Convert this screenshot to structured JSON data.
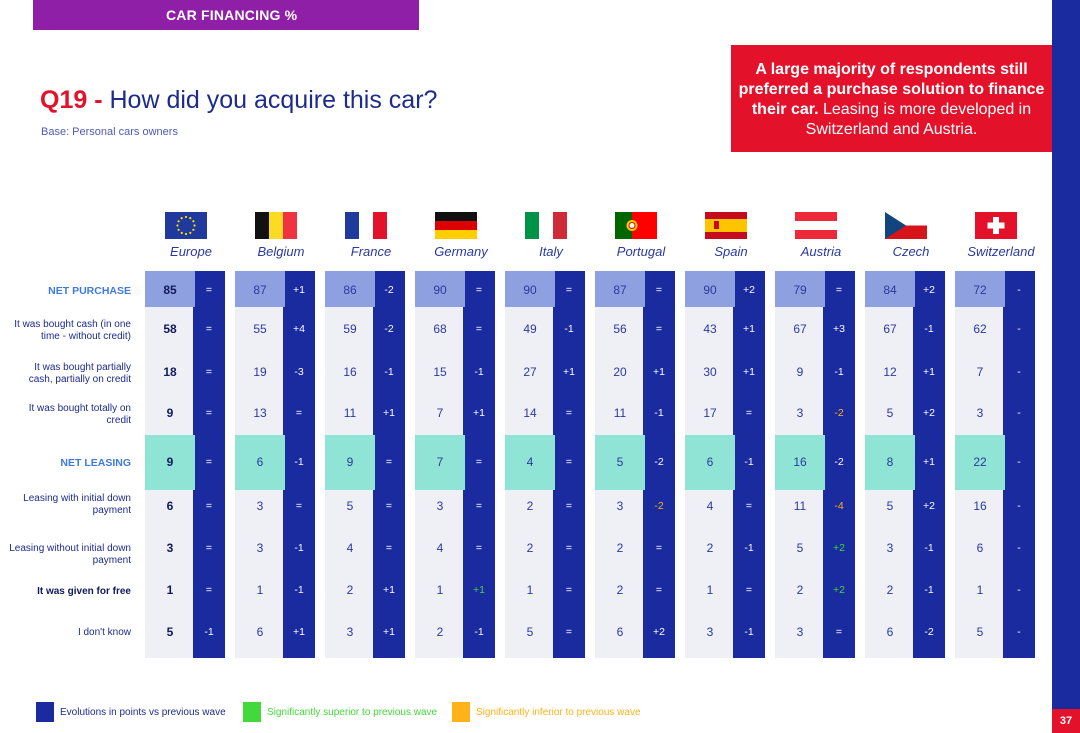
{
  "header": {
    "section": "CAR FINANCING %"
  },
  "page_number": "37",
  "question": {
    "code": "Q19 -",
    "text": "How did you acquire this car?",
    "base": "Base: Personal cars owners"
  },
  "callout": {
    "bold": "A large majority of respondents still preferred a purchase solution to finance their car.",
    "normal": "Leasing is more developed in Switzerland and Austria."
  },
  "countries": [
    {
      "name": "Europe",
      "flag": "eu-flag"
    },
    {
      "name": "Belgium",
      "flag": "belgium-flag"
    },
    {
      "name": "France",
      "flag": "france-flag"
    },
    {
      "name": "Germany",
      "flag": "germany-flag"
    },
    {
      "name": "Italy",
      "flag": "italy-flag"
    },
    {
      "name": "Portugal",
      "flag": "portugal-flag"
    },
    {
      "name": "Spain",
      "flag": "spain-flag"
    },
    {
      "name": "Austria",
      "flag": "austria-flag"
    },
    {
      "name": "Czech",
      "flag": "czech-flag"
    },
    {
      "name": "Switzerland",
      "flag": "switzerland-flag"
    }
  ],
  "rows": [
    {
      "label": "NET PURCHASE",
      "type": "net"
    },
    {
      "label": "It was bought cash (in one time - without credit)",
      "type": "normal"
    },
    {
      "label": "It was bought partially cash, partially on credit",
      "type": "normal"
    },
    {
      "label": "It was bought totally on credit",
      "type": "normal"
    },
    {
      "label": "NET LEASING",
      "type": "net"
    },
    {
      "label": "Leasing with initial down payment",
      "type": "normal"
    },
    {
      "label": "Leasing without initial down payment",
      "type": "normal"
    },
    {
      "label": "It was given for free",
      "type": "bold"
    },
    {
      "label": "I don't know",
      "type": "normal"
    }
  ],
  "values": [
    [
      "85",
      "87",
      "86",
      "90",
      "90",
      "87",
      "90",
      "79",
      "84",
      "72"
    ],
    [
      "58",
      "55",
      "59",
      "68",
      "49",
      "56",
      "43",
      "67",
      "67",
      "62"
    ],
    [
      "18",
      "19",
      "16",
      "15",
      "27",
      "20",
      "30",
      "9",
      "12",
      "7"
    ],
    [
      "9",
      "13",
      "11",
      "7",
      "14",
      "11",
      "17",
      "3",
      "5",
      "3"
    ],
    [
      "9",
      "6",
      "9",
      "7",
      "4",
      "5",
      "6",
      "16",
      "8",
      "22"
    ],
    [
      "6",
      "3",
      "5",
      "3",
      "2",
      "3",
      "4",
      "11",
      "5",
      "16"
    ],
    [
      "3",
      "3",
      "4",
      "4",
      "2",
      "2",
      "2",
      "5",
      "3",
      "6"
    ],
    [
      "1",
      "1",
      "2",
      "1",
      "1",
      "2",
      "1",
      "2",
      "2",
      "1"
    ],
    [
      "5",
      "6",
      "3",
      "2",
      "5",
      "6",
      "3",
      "3",
      "6",
      "5"
    ]
  ],
  "evolutions": [
    [
      "=",
      "+1",
      "-2",
      "=",
      "=",
      "=",
      "+2",
      "=",
      "+2",
      "-"
    ],
    [
      "=",
      "+4",
      "-2",
      "=",
      "-1",
      "=",
      "+1",
      "+3",
      "-1",
      "-"
    ],
    [
      "=",
      "-3",
      "-1",
      "-1",
      "+1",
      "+1",
      "+1",
      "-1",
      "+1",
      "-"
    ],
    [
      "=",
      "=",
      "+1",
      "+1",
      "=",
      "-1",
      "=",
      "-2",
      "+2",
      "-"
    ],
    [
      "=",
      "-1",
      "=",
      "=",
      "=",
      "-2",
      "-1",
      "-2",
      "+1",
      "-"
    ],
    [
      "=",
      "=",
      "=",
      "=",
      "=",
      "-2",
      "=",
      "-4",
      "+2",
      "-"
    ],
    [
      "=",
      "-1",
      "=",
      "=",
      "=",
      "=",
      "-1",
      "+2",
      "-1",
      "-"
    ],
    [
      "=",
      "-1",
      "+1",
      "+1",
      "=",
      "=",
      "=",
      "+2",
      "-1",
      "-"
    ],
    [
      "-1",
      "+1",
      "+1",
      "-1",
      "=",
      "+2",
      "-1",
      "=",
      "-2",
      "-"
    ]
  ],
  "evolution_colors": [
    [
      "w",
      "w",
      "w",
      "w",
      "w",
      "w",
      "w",
      "w",
      "w",
      "w"
    ],
    [
      "w",
      "w",
      "w",
      "w",
      "w",
      "w",
      "w",
      "w",
      "w",
      "w"
    ],
    [
      "w",
      "w",
      "w",
      "w",
      "w",
      "w",
      "w",
      "w",
      "w",
      "w"
    ],
    [
      "w",
      "w",
      "w",
      "w",
      "w",
      "w",
      "w",
      "o",
      "w",
      "w"
    ],
    [
      "w",
      "w",
      "w",
      "w",
      "w",
      "w",
      "w",
      "w",
      "w",
      "w"
    ],
    [
      "w",
      "w",
      "w",
      "w",
      "w",
      "o",
      "w",
      "o",
      "w",
      "w"
    ],
    [
      "w",
      "w",
      "w",
      "w",
      "w",
      "w",
      "w",
      "g",
      "w",
      "w"
    ],
    [
      "w",
      "w",
      "w",
      "g",
      "w",
      "w",
      "w",
      "g",
      "w",
      "w"
    ],
    [
      "w",
      "w",
      "w",
      "w",
      "w",
      "w",
      "w",
      "w",
      "w",
      "w"
    ]
  ],
  "colors": {
    "brand_blue": "#1a2a9f",
    "purchase_band": "#8fa0e1",
    "leasing_band": "#8fe4d6",
    "red": "#e3112a",
    "purple": "#8e1fa6",
    "green": "#43d93b",
    "orange": "#ffb21a"
  },
  "legend": [
    {
      "label": "Evolutions in points vs previous wave",
      "color": "#1a2a9f",
      "text_color": "#1d2b8c"
    },
    {
      "label": "Significantly superior to previous wave",
      "color": "#43d93b",
      "text_color": "#43d93b"
    },
    {
      "label": "Significantly inferior to previous wave",
      "color": "#ffb21a",
      "text_color": "#ffb21a"
    }
  ]
}
